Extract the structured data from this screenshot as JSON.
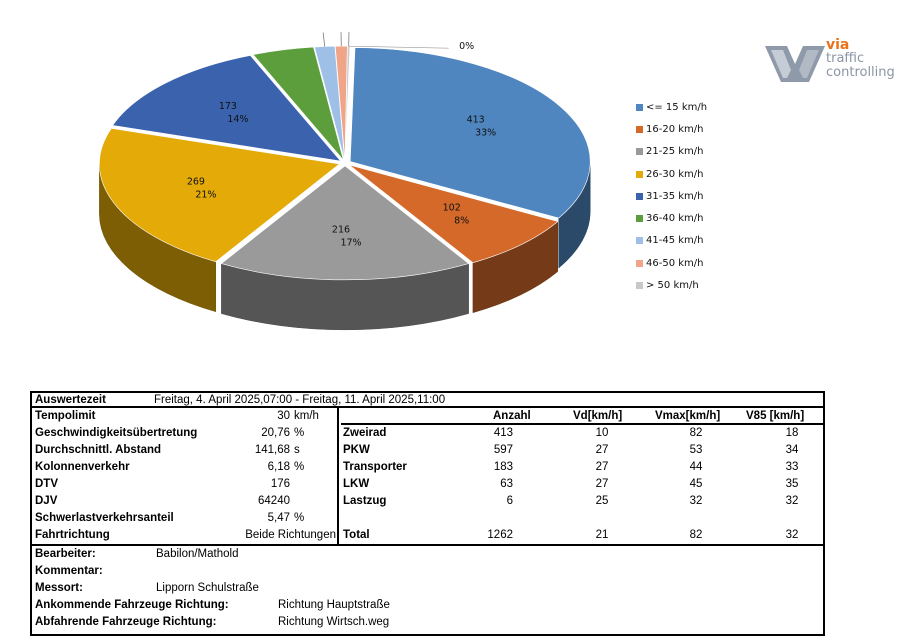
{
  "chart_data": {
    "type": "pie",
    "style": "3d-exploded",
    "title": "",
    "slices": [
      {
        "label": "<= 15 km/h",
        "value": 413,
        "pct_label": "33%",
        "value_label": "413",
        "color": "#4f86c0"
      },
      {
        "label": "16-20 km/h",
        "value": 102,
        "pct_label": "8%",
        "value_label": "102",
        "color": "#d5692a"
      },
      {
        "label": "21-25 km/h",
        "value": 216,
        "pct_label": "17%",
        "value_label": "216",
        "color": "#9a9a9a"
      },
      {
        "label": "26-30 km/h",
        "value": 269,
        "pct_label": "21%",
        "value_label": "269",
        "color": "#e3aa08"
      },
      {
        "label": "31-35 km/h",
        "value": 173,
        "pct_label": "14%",
        "value_label": "173",
        "color": "#3a62ad"
      },
      {
        "label": "36-40 km/h",
        "value": 52,
        "pct_label": "",
        "value_label": "",
        "color": "#5d9e3c"
      },
      {
        "label": "41-45 km/h",
        "value": 17,
        "pct_label": "",
        "value_label": "",
        "color": "#9fc0e6"
      },
      {
        "label": "46-50 km/h",
        "value": 10,
        "pct_label": "",
        "value_label": "",
        "color": "#f0a488"
      },
      {
        "label": "> 50 km/h",
        "value": 2,
        "pct_label": "0%",
        "value_label": "",
        "color": "#c8c8c8"
      }
    ],
    "legend_position": "right"
  },
  "logo": {
    "line1": "via",
    "line2": "traffic",
    "line3": "controlling"
  },
  "report": {
    "auswertezeit_label": "Auswertezeit",
    "auswertezeit_value": "Freitag, 4. April 2025,07:00  -  Freitag, 11. April 2025,11:00",
    "left_rows": [
      {
        "label": "Tempolimit",
        "value": "30",
        "unit": "km/h"
      },
      {
        "label": "Geschwindigkeitsübertretung",
        "value": "20,76",
        "unit": "%"
      },
      {
        "label": "Durchschnittl. Abstand",
        "value": "141,68",
        "unit": "s"
      },
      {
        "label": "Kolonnenverkehr",
        "value": "6,18",
        "unit": "%"
      },
      {
        "label": "DTV",
        "value": "176",
        "unit": ""
      },
      {
        "label": "DJV",
        "value": "64240",
        "unit": ""
      },
      {
        "label": "Schwerlastverkehrsanteil",
        "value": "5,47",
        "unit": "%"
      },
      {
        "label": "Fahrtrichtung",
        "value": "Beide Richtungen",
        "unit": ""
      }
    ],
    "columns": [
      "Anzahl",
      "Vd[km/h]",
      "Vmax[km/h]",
      "V85 [km/h]"
    ],
    "vehicle_rows": [
      {
        "name": "Zweirad",
        "anzahl": "413",
        "vd": "10",
        "vmax": "82",
        "v85": "18"
      },
      {
        "name": "PKW",
        "anzahl": "597",
        "vd": "27",
        "vmax": "53",
        "v85": "34"
      },
      {
        "name": "Transporter",
        "anzahl": "183",
        "vd": "27",
        "vmax": "44",
        "v85": "33"
      },
      {
        "name": "LKW",
        "anzahl": "63",
        "vd": "27",
        "vmax": "45",
        "v85": "35"
      },
      {
        "name": "Lastzug",
        "anzahl": "6",
        "vd": "25",
        "vmax": "32",
        "v85": "32"
      }
    ],
    "total_row": {
      "name": "Total",
      "anzahl": "1262",
      "vd": "21",
      "vmax": "82",
      "v85": "32"
    },
    "bottom_rows": [
      {
        "label": "Bearbeiter:",
        "value": "Babilon/Mathold"
      },
      {
        "label": "Kommentar:",
        "value": ""
      },
      {
        "label": "Messort:",
        "value": "Lipporn Schulstraße"
      },
      {
        "label": "Ankommende Fahrzeuge Richtung:",
        "value": "Richtung Hauptstraße"
      },
      {
        "label": "Abfahrende Fahrzeuge Richtung:",
        "value": "Richtung Wirtsch.weg"
      }
    ]
  }
}
